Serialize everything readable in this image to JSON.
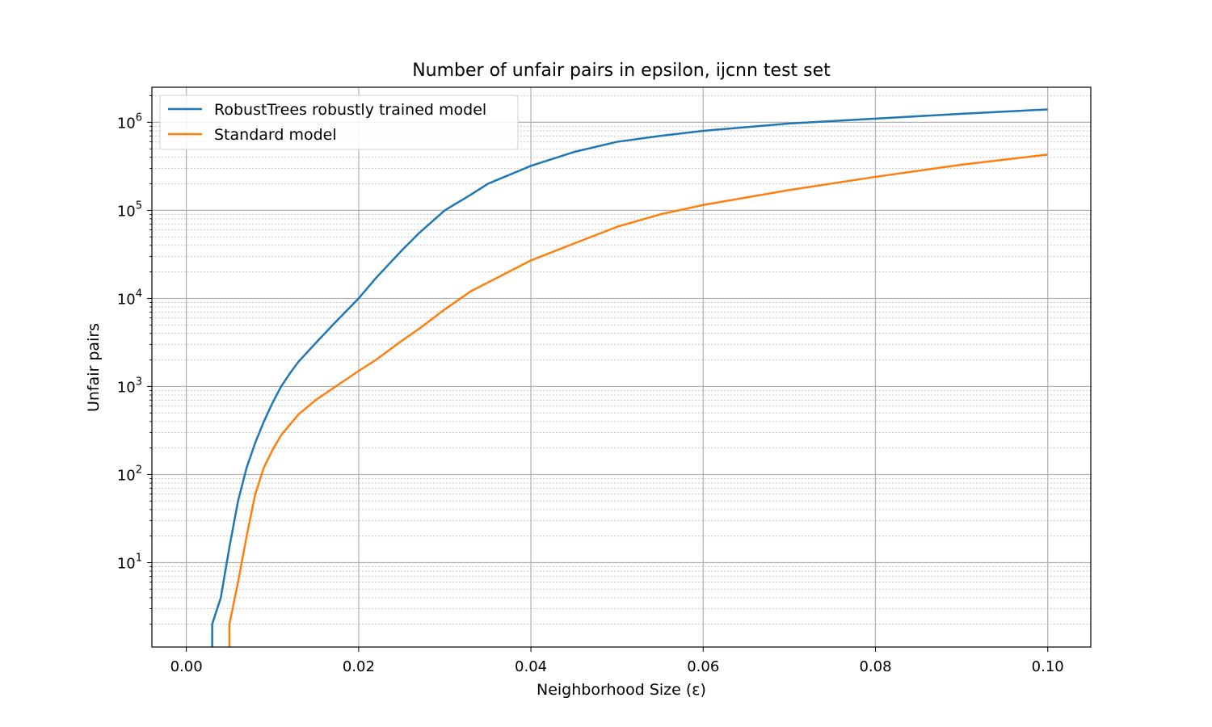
{
  "chart_data": {
    "type": "line",
    "title": "Number of unfair pairs in epsilon, ijcnn test set",
    "xlabel": "Neighborhood Size (ε)",
    "ylabel": "Unfair pairs",
    "xlim": [
      -0.004,
      0.105
    ],
    "ylim": [
      1.1,
      2500000
    ],
    "yscale": "log",
    "grid": true,
    "legend_position": "upper-left",
    "x_ticks": [
      0.0,
      0.02,
      0.04,
      0.06,
      0.08,
      0.1
    ],
    "x_tick_labels": [
      "0.00",
      "0.02",
      "0.04",
      "0.06",
      "0.08",
      "0.10"
    ],
    "y_ticks": [
      {
        "value": 10,
        "base": "10",
        "exp": "1"
      },
      {
        "value": 100,
        "base": "10",
        "exp": "2"
      },
      {
        "value": 1000,
        "base": "10",
        "exp": "3"
      },
      {
        "value": 10000,
        "base": "10",
        "exp": "4"
      },
      {
        "value": 100000,
        "base": "10",
        "exp": "5"
      },
      {
        "value": 1000000,
        "base": "10",
        "exp": "6"
      }
    ],
    "series": [
      {
        "name": "RobustTrees robustly trained model",
        "color": "#1f77b4",
        "x": [
          0.003,
          0.003,
          0.004,
          0.005,
          0.006,
          0.007,
          0.008,
          0.009,
          0.01,
          0.011,
          0.012,
          0.013,
          0.015,
          0.017,
          0.02,
          0.022,
          0.025,
          0.027,
          0.03,
          0.033,
          0.035,
          0.04,
          0.045,
          0.05,
          0.055,
          0.06,
          0.07,
          0.08,
          0.09,
          0.1
        ],
        "y": [
          1.1,
          2,
          4,
          15,
          50,
          120,
          230,
          400,
          650,
          1000,
          1400,
          1900,
          3100,
          5000,
          10000,
          17000,
          35000,
          55000,
          100000,
          150000,
          200000,
          320000,
          460000,
          600000,
          700000,
          800000,
          970000,
          1100000,
          1250000,
          1400000
        ]
      },
      {
        "name": "Standard model",
        "color": "#ff7f0e",
        "x": [
          0.005,
          0.005,
          0.006,
          0.007,
          0.008,
          0.009,
          0.01,
          0.011,
          0.013,
          0.015,
          0.017,
          0.02,
          0.022,
          0.025,
          0.027,
          0.03,
          0.033,
          0.036,
          0.04,
          0.045,
          0.05,
          0.055,
          0.06,
          0.07,
          0.08,
          0.09,
          0.1
        ],
        "y": [
          1.1,
          2,
          6,
          20,
          60,
          120,
          190,
          280,
          480,
          700,
          950,
          1500,
          2000,
          3300,
          4500,
          7500,
          12000,
          17000,
          27000,
          42000,
          65000,
          90000,
          115000,
          170000,
          240000,
          330000,
          430000
        ]
      }
    ]
  }
}
